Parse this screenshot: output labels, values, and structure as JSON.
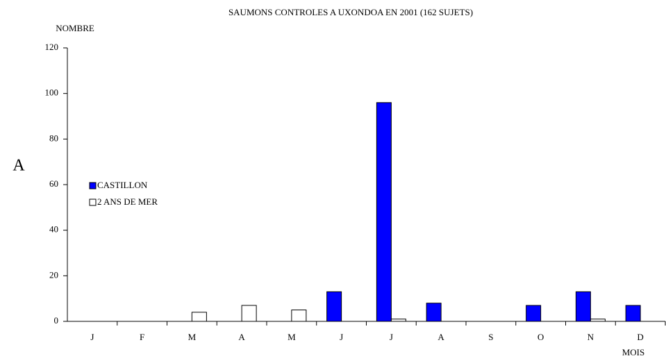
{
  "chart_data": {
    "type": "bar",
    "title": "SAUMONS CONTROLES A UXONDOA EN 2001 (162 SUJETS)",
    "y_label": "NOMBRE",
    "x_label": "MOIS",
    "annotation": "A",
    "categories": [
      "J",
      "F",
      "M",
      "A",
      "M",
      "J",
      "J",
      "A",
      "S",
      "O",
      "N",
      "D"
    ],
    "series": [
      {
        "name": "CASTILLON",
        "color": "#0000ff",
        "values": [
          0,
          0,
          0,
          0,
          0,
          13,
          96,
          8,
          0,
          7,
          13,
          7
        ]
      },
      {
        "name": "2 ANS DE MER",
        "color": "#ffffff",
        "values": [
          0,
          0,
          4,
          7,
          5,
          0,
          1,
          0,
          0,
          0,
          1,
          0
        ]
      }
    ],
    "ylim": [
      0,
      120
    ],
    "yticks": [
      0,
      20,
      40,
      60,
      80,
      100,
      120
    ],
    "grid": false,
    "legend": "left"
  }
}
